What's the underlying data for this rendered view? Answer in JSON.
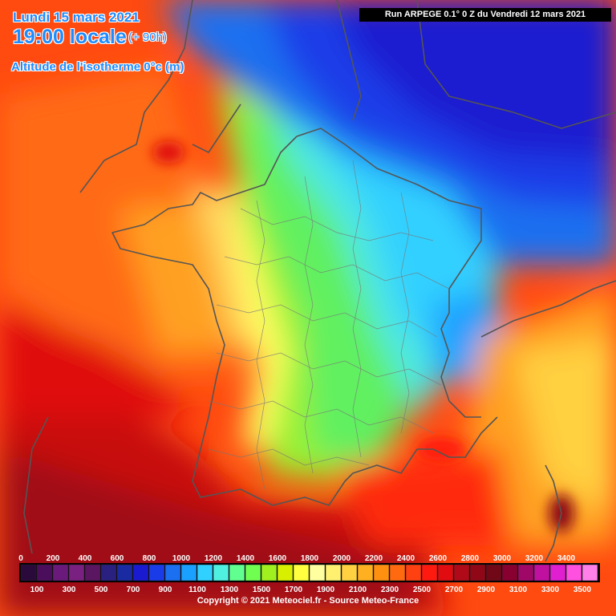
{
  "header": {
    "date": "Lundi 15 mars 2021",
    "time": "19:00 locale",
    "range": "(+ 90h)",
    "field": "Altitude de l'isotherme 0°c (m)"
  },
  "run_info": "Run ARPEGE 0.1° 0 Z du Vendredi 12 mars 2021",
  "legend": {
    "top_labels": [
      "0",
      "200",
      "400",
      "600",
      "800",
      "1000",
      "1200",
      "1400",
      "1600",
      "1800",
      "2000",
      "2200",
      "2400",
      "2600",
      "2800",
      "3000",
      "3200",
      "3400"
    ],
    "bottom_labels": [
      "100",
      "300",
      "500",
      "700",
      "900",
      "1100",
      "1300",
      "1500",
      "1700",
      "1900",
      "2100",
      "2300",
      "2500",
      "2700",
      "2900",
      "3100",
      "3300",
      "3500"
    ],
    "colors": [
      "#2a0a3a",
      "#4b0e5c",
      "#6a1a7a",
      "#7a2080",
      "#5a1660",
      "#2a2080",
      "#1a2aa0",
      "#1a1ad0",
      "#1a3ce8",
      "#1a70f0",
      "#1aa0ff",
      "#30d0ff",
      "#50f0e0",
      "#60ff90",
      "#70ff50",
      "#a0f020",
      "#d8f000",
      "#ffff40",
      "#ffffa0",
      "#fff070",
      "#ffd040",
      "#ffb020",
      "#ff9010",
      "#ff6a10",
      "#ff4010",
      "#ff1a10",
      "#e00c10",
      "#b00a18",
      "#900818",
      "#700818",
      "#880030",
      "#a00868",
      "#c010a0",
      "#e020d0",
      "#ff50e0",
      "#ff80e8"
    ]
  },
  "copyright": "Copyright © 2021 Meteociel.fr - Source Meteo-France"
}
